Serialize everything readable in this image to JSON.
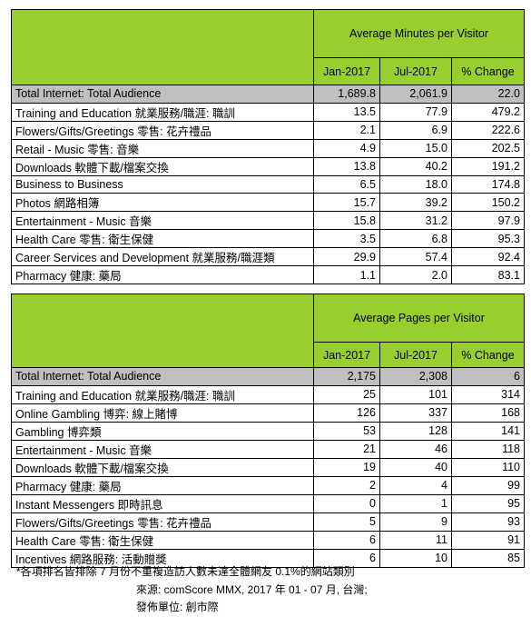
{
  "tables": [
    {
      "header": "Average Minutes per Visitor",
      "columns": [
        "Jan-2017",
        "Jul-2017",
        "% Change"
      ],
      "rows": [
        [
          "Total Internet: Total Audience",
          "1,689.8",
          "2,061.9",
          "22.0"
        ],
        [
          "Training and Education 就業服務/職涯: 職訓",
          "13.5",
          "77.9",
          "479.2"
        ],
        [
          "Flowers/Gifts/Greetings 零售: 花卉禮品",
          "2.1",
          "6.9",
          "222.6"
        ],
        [
          "Retail - Music 零售: 音樂",
          "4.9",
          "15.0",
          "202.5"
        ],
        [
          "Downloads 軟體下載/檔案交換",
          "13.8",
          "40.2",
          "191.2"
        ],
        [
          "Business to Business",
          "6.5",
          "18.0",
          "174.8"
        ],
        [
          "Photos 網路相簿",
          "15.7",
          "39.2",
          "150.2"
        ],
        [
          "Entertainment - Music 音樂",
          "15.8",
          "31.2",
          "97.9"
        ],
        [
          "Health Care 零售: 衛生保健",
          "3.5",
          "6.8",
          "95.3"
        ],
        [
          "Career Services and Development 就業服務/職涯類",
          "29.9",
          "57.4",
          "92.4"
        ],
        [
          "Pharmacy 健康: 藥局",
          "1.1",
          "2.0",
          "83.1"
        ]
      ]
    },
    {
      "header": "Average Pages per Visitor",
      "columns": [
        "Jan-2017",
        "Jul-2017",
        "% Change"
      ],
      "rows": [
        [
          "Total Internet: Total Audience",
          "2,175",
          "2,308",
          "6"
        ],
        [
          "Training and Education 就業服務/職涯: 職訓",
          "25",
          "101",
          "314"
        ],
        [
          "Online Gambling 博弈: 線上賭博",
          "126",
          "337",
          "168"
        ],
        [
          "Gambling 博弈類",
          "53",
          "128",
          "141"
        ],
        [
          "Entertainment - Music 音樂",
          "21",
          "46",
          "118"
        ],
        [
          "Downloads 軟體下載/檔案交換",
          "19",
          "40",
          "110"
        ],
        [
          "Pharmacy 健康: 藥局",
          "2",
          "4",
          "99"
        ],
        [
          "Instant Messengers 即時訊息",
          "0",
          "1",
          "95"
        ],
        [
          "Flowers/Gifts/Greetings 零售: 花卉禮品",
          "5",
          "9",
          "93"
        ],
        [
          "Health Care 零售: 衛生保健",
          "6",
          "11",
          "91"
        ],
        [
          "Incentives 網路服務: 活動贈獎",
          "6",
          "10",
          "85"
        ]
      ]
    }
  ],
  "footnotes": [
    "*各項排名皆排除 7 月份不重複造訪人數未達全體網友 0.1%的網站類別",
    "來源: comScore MMX, 2017 年 01 - 07 月, 台灣;",
    "發佈單位: 創市際"
  ]
}
